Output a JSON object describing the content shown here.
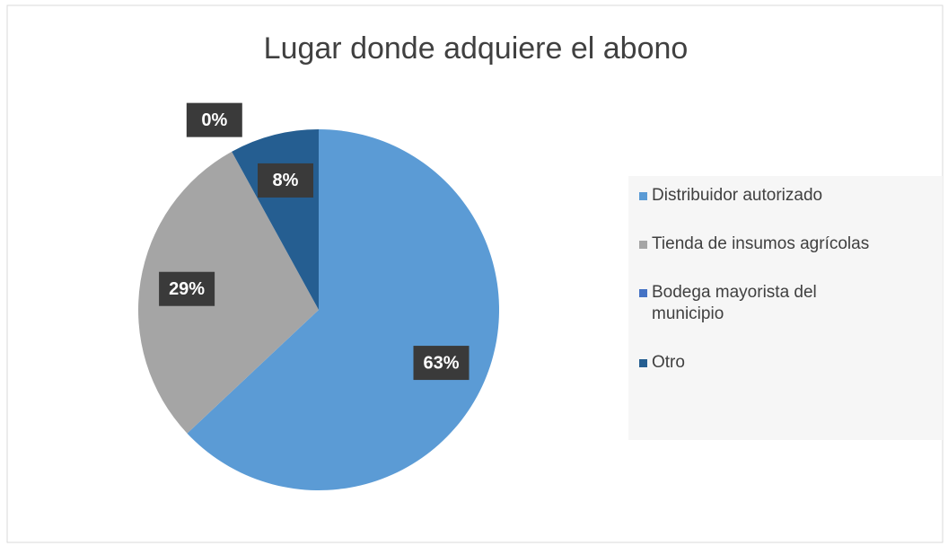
{
  "chart_data": {
    "type": "pie",
    "title": "Lugar donde adquiere el abono",
    "categories": [
      "Distribuidor autorizado",
      "Tienda de insumos agrícolas",
      "Bodega mayorista del municipio",
      "Otro"
    ],
    "values": [
      63,
      29,
      0,
      8
    ],
    "value_labels": [
      "63%",
      "29%",
      "0%",
      "8%"
    ],
    "colors": [
      "#5b9bd5",
      "#a5a5a5",
      "#4472c4",
      "#255e91"
    ],
    "legend": "right"
  }
}
